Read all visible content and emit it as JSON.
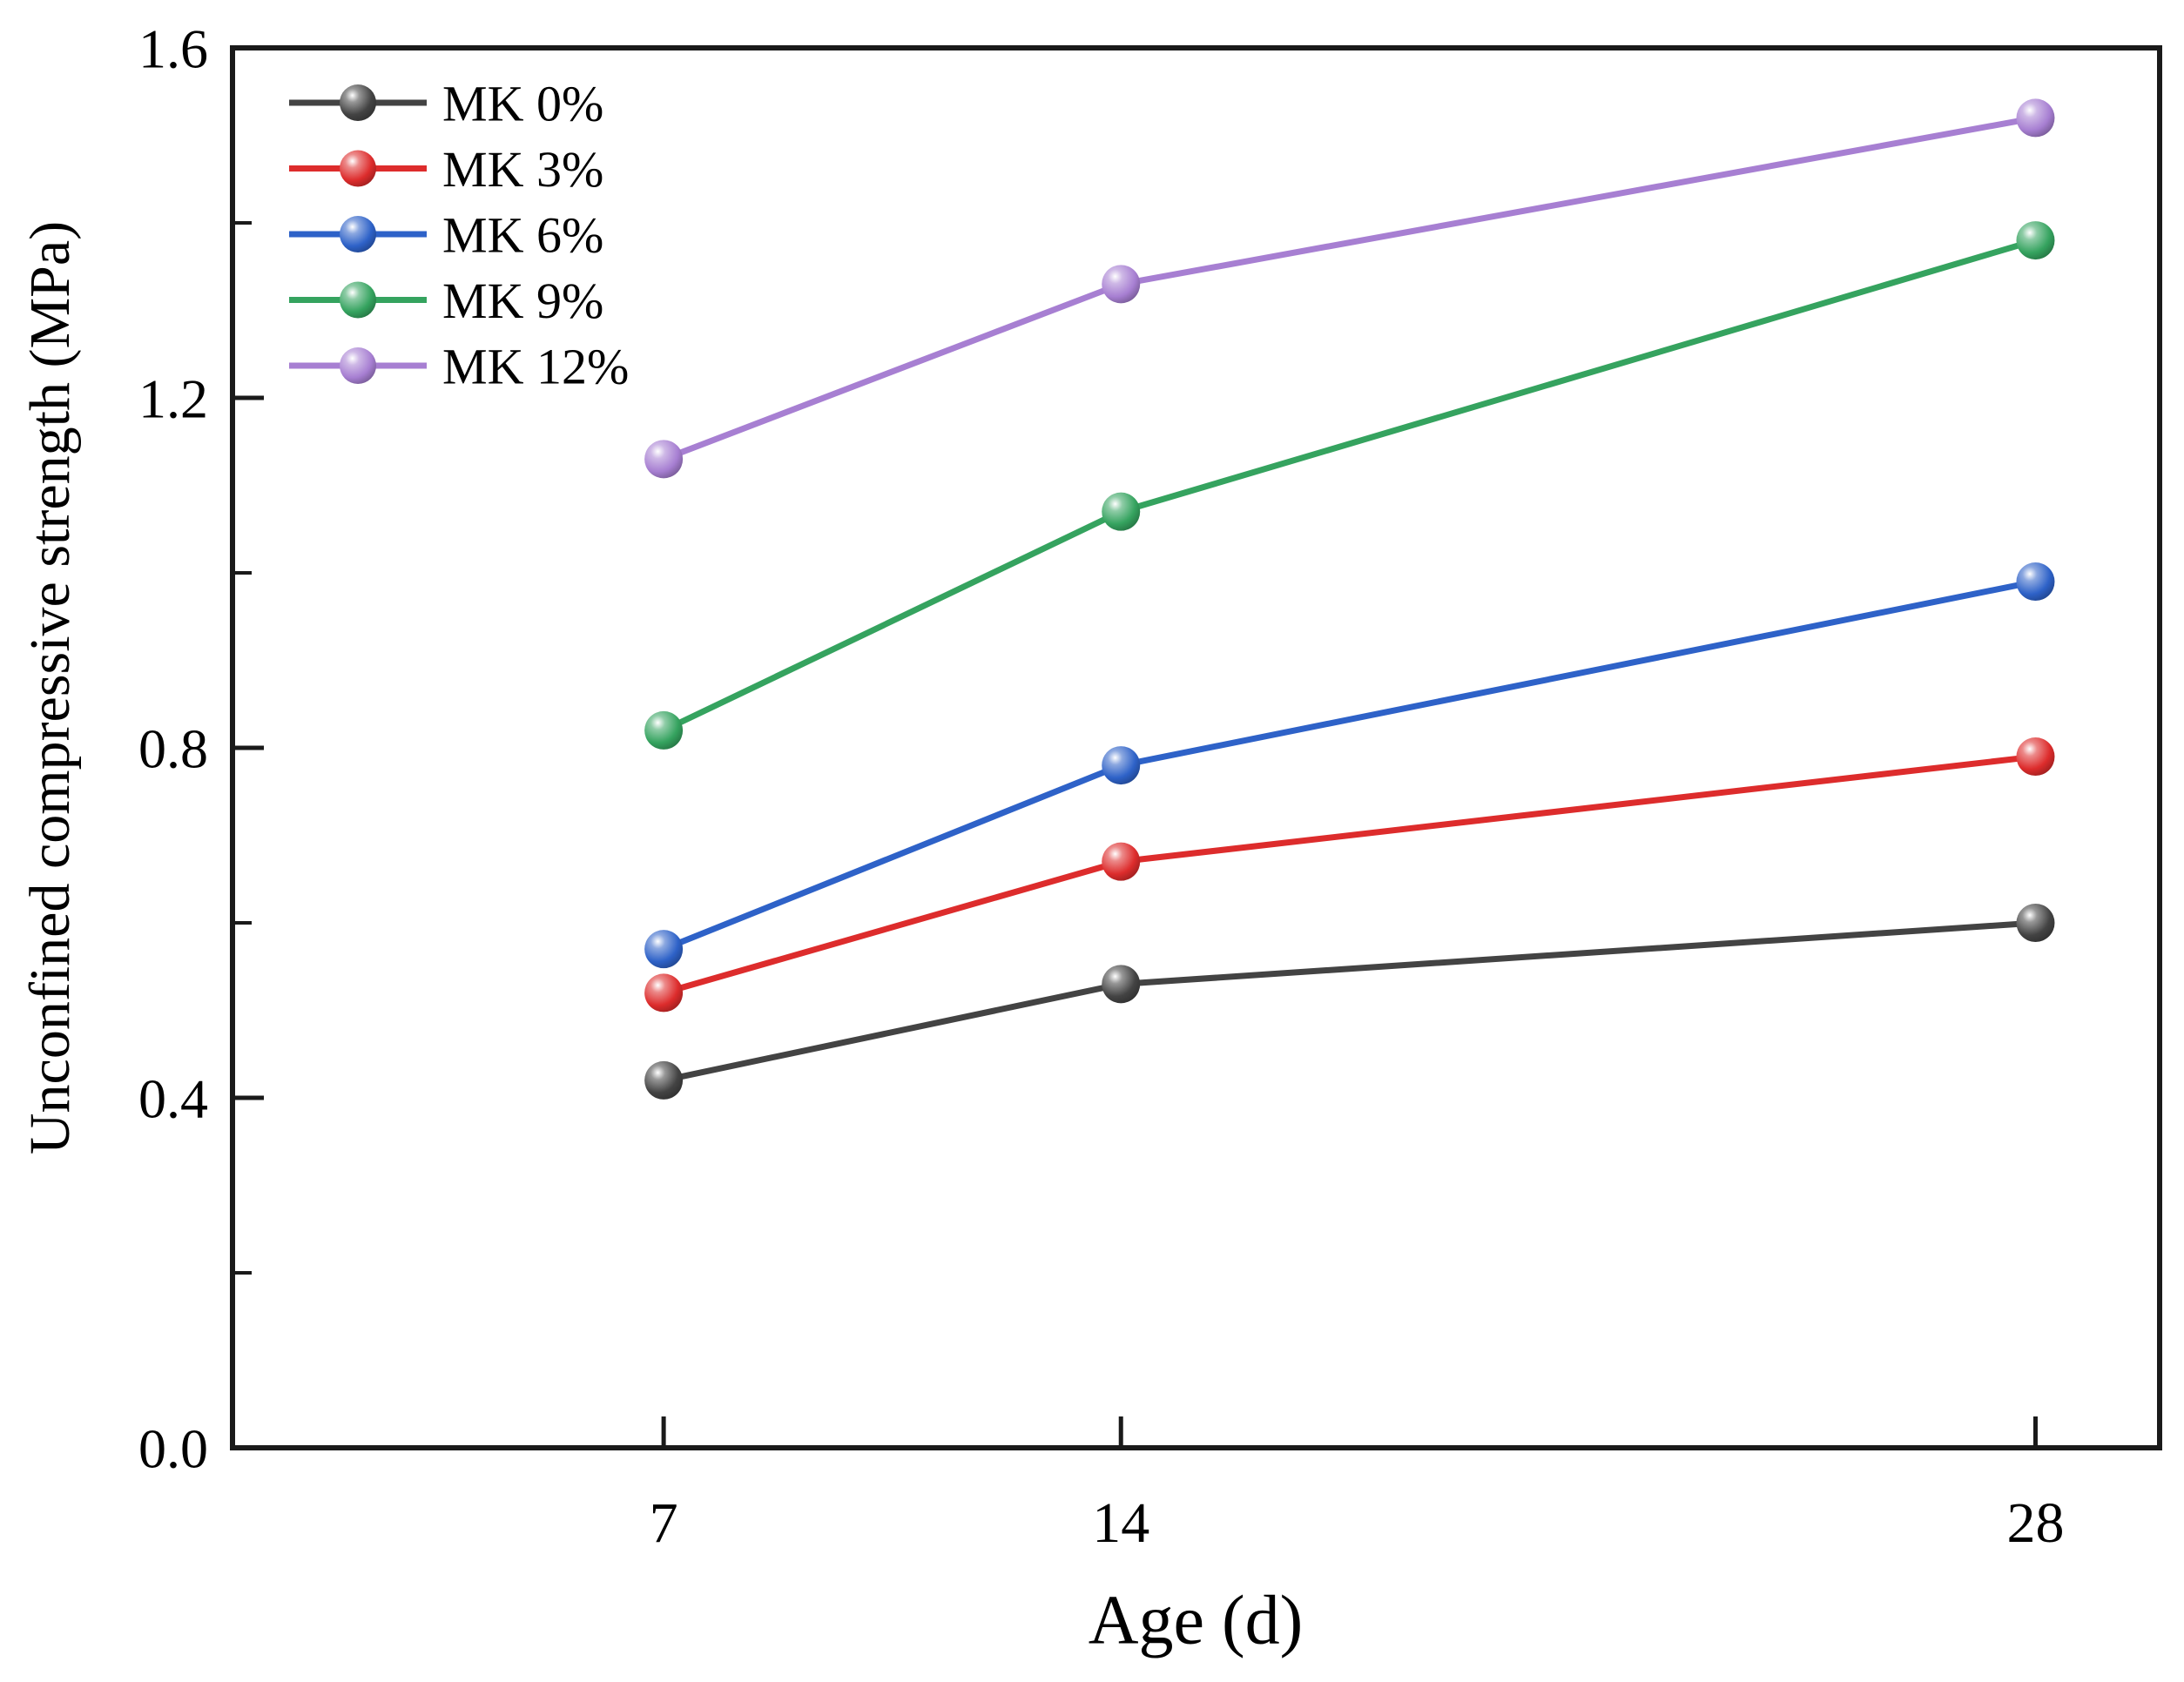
{
  "figure": {
    "background": "#ffffff"
  },
  "chart_data": {
    "type": "line",
    "title": "",
    "xlabel": "Age (d)",
    "ylabel": "Unconfined compressive strength (MPa)",
    "x": [
      7,
      14,
      28
    ],
    "xtick_labels": [
      "7",
      "14",
      "28"
    ],
    "series": [
      {
        "name": "MK 0%",
        "color": "#434343",
        "values": [
          0.42,
          0.53,
          0.6
        ]
      },
      {
        "name": "MK 3%",
        "color": "#dd2c2c",
        "values": [
          0.52,
          0.67,
          0.79
        ]
      },
      {
        "name": "MK 6%",
        "color": "#2e62c8",
        "values": [
          0.57,
          0.78,
          0.99
        ]
      },
      {
        "name": "MK 9%",
        "color": "#35a35f",
        "values": [
          0.82,
          1.07,
          1.38
        ]
      },
      {
        "name": "MK 12%",
        "color": "#a77fd2",
        "values": [
          1.13,
          1.33,
          1.52
        ]
      }
    ],
    "xlim": [
      0.4,
      29.9
    ],
    "ylim": [
      0.0,
      1.6
    ],
    "yticks": [
      0.0,
      0.4,
      0.8,
      1.2,
      1.6
    ],
    "ytick_labels": [
      "0.0",
      "0.4",
      "0.8",
      "1.2",
      "1.6"
    ],
    "y_minor_step": 0.2,
    "grid": false,
    "legend_position": "top-left",
    "marker": "sphere",
    "axis_color": "#1a1a1a"
  }
}
